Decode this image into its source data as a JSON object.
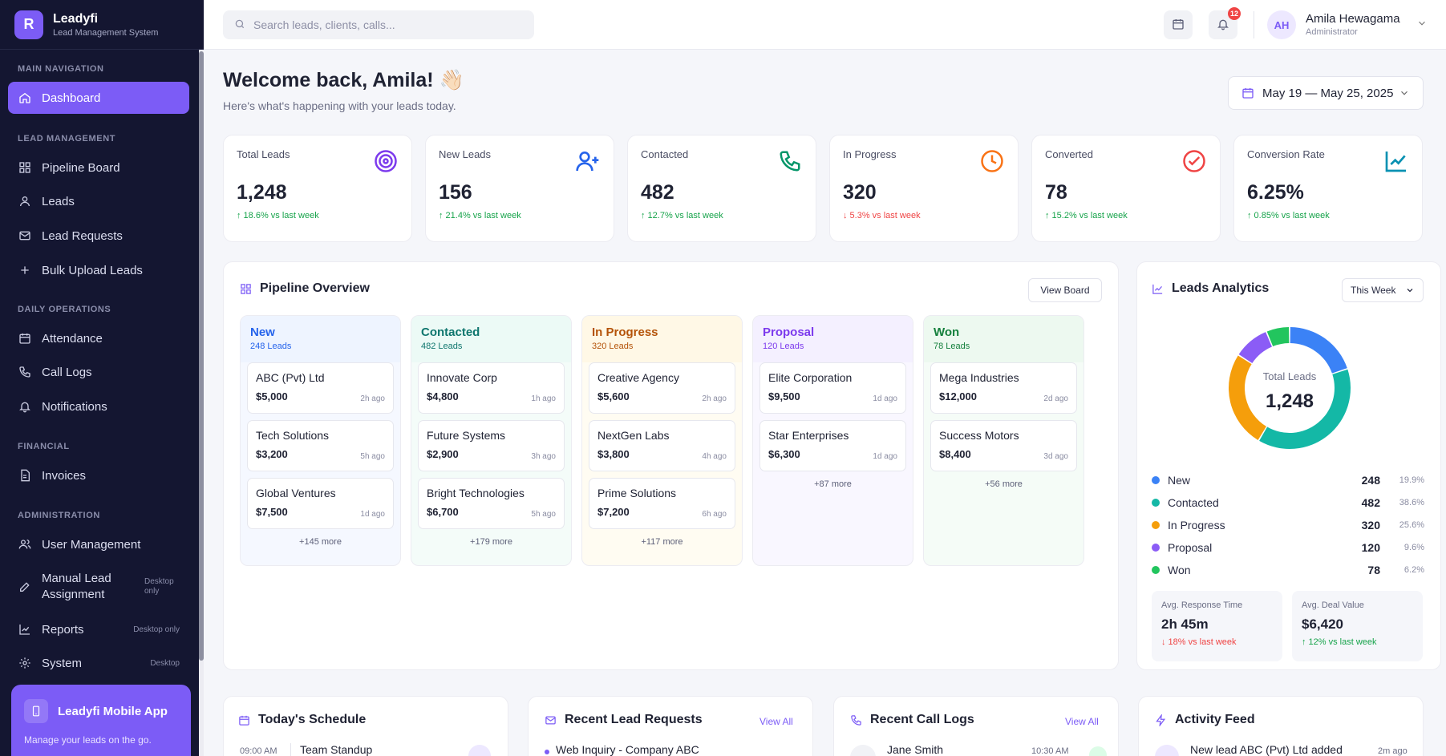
{
  "brand": {
    "logo_letter": "R",
    "name": "Leadyfi",
    "subtitle": "Lead Management System"
  },
  "sidebar": {
    "sections": [
      {
        "title": "Main Navigation"
      },
      {
        "title": "Lead Management"
      },
      {
        "title": "Daily Operations"
      },
      {
        "title": "Financial"
      },
      {
        "title": "Administration"
      }
    ],
    "items": [
      {
        "label": "Dashboard",
        "icon": "home-icon",
        "active": true
      },
      {
        "label": "Pipeline Board",
        "icon": "grid-icon"
      },
      {
        "label": "Leads",
        "icon": "user-icon"
      },
      {
        "label": "Lead Requests",
        "icon": "mail-icon"
      },
      {
        "label": "Bulk Upload Leads",
        "icon": "plus-icon"
      },
      {
        "label": "Attendance",
        "icon": "calendar-icon"
      },
      {
        "label": "Call Logs",
        "icon": "phone-icon"
      },
      {
        "label": "Notifications",
        "icon": "bell-icon"
      },
      {
        "label": "Invoices",
        "icon": "file-icon"
      },
      {
        "label": "User Management",
        "icon": "users-icon"
      },
      {
        "label": "Manual Lead Assignment",
        "icon": "edit-icon",
        "tag": "Desktop only"
      },
      {
        "label": "Reports",
        "icon": "chart-icon",
        "tag": "Desktop only"
      },
      {
        "label": "System",
        "icon": "settings-icon",
        "tag": "Desktop"
      }
    ],
    "mobile_card": {
      "title": "Leadyfi Mobile App",
      "subtitle": "Manage your leads on the go."
    }
  },
  "topbar": {
    "search_placeholder": "Search leads, clients, calls...",
    "notification_count": "12",
    "user": {
      "initials": "AH",
      "name": "Amila Hewagama",
      "role": "Administrator"
    }
  },
  "header": {
    "welcome": "Welcome back, Amila! 👋🏻",
    "subtitle": "Here's what's happening with your leads today.",
    "date_range": "May 19 — May 25, 2025"
  },
  "kpis": [
    {
      "label": "Total Leads",
      "value": "1,248",
      "delta": "↑ 18.6% vs last week",
      "trend": "up",
      "icon": "target-icon",
      "color": "#7c3aed"
    },
    {
      "label": "New Leads",
      "value": "156",
      "delta": "↑ 21.4% vs last week",
      "trend": "up",
      "icon": "user-plus-icon",
      "color": "#2563eb"
    },
    {
      "label": "Contacted",
      "value": "482",
      "delta": "↑ 12.7% vs last week",
      "trend": "up",
      "icon": "phone-icon",
      "color": "#059669"
    },
    {
      "label": "In Progress",
      "value": "320",
      "delta": "↓ 5.3% vs last week",
      "trend": "down",
      "icon": "clock-icon",
      "color": "#f97316"
    },
    {
      "label": "Converted",
      "value": "78",
      "delta": "↑ 15.2% vs last week",
      "trend": "up",
      "icon": "check-circle-icon",
      "color": "#ef4444"
    },
    {
      "label": "Conversion Rate",
      "value": "6.25%",
      "delta": "↑ 0.85% vs last week",
      "trend": "up",
      "icon": "trend-icon",
      "color": "#0891b2"
    }
  ],
  "pipeline": {
    "title": "Pipeline Overview",
    "view_board": "View Board",
    "columns": [
      {
        "title": "New",
        "count": "248 Leads",
        "color": "#2563eb",
        "bg": "#eef4ff",
        "body": "#f5f8ff",
        "deals": [
          {
            "name": "ABC (Pvt) Ltd",
            "value": "$5,000",
            "time": "2h ago"
          },
          {
            "name": "Tech Solutions",
            "value": "$3,200",
            "time": "5h ago"
          },
          {
            "name": "Global Ventures",
            "value": "$7,500",
            "time": "1d ago"
          }
        ],
        "more": "+145 more"
      },
      {
        "title": "Contacted",
        "count": "482 Leads",
        "color": "#0f766e",
        "bg": "#ecfaf6",
        "body": "#f4fcf9",
        "deals": [
          {
            "name": "Innovate Corp",
            "value": "$4,800",
            "time": "1h ago"
          },
          {
            "name": "Future Systems",
            "value": "$2,900",
            "time": "3h ago"
          },
          {
            "name": "Bright Technologies",
            "value": "$6,700",
            "time": "5h ago"
          }
        ],
        "more": "+179 more"
      },
      {
        "title": "In Progress",
        "count": "320 Leads",
        "color": "#b45309",
        "bg": "#fff8e6",
        "body": "#fffcf2",
        "deals": [
          {
            "name": "Creative Agency",
            "value": "$5,600",
            "time": "2h ago"
          },
          {
            "name": "NextGen Labs",
            "value": "$3,800",
            "time": "4h ago"
          },
          {
            "name": "Prime Solutions",
            "value": "$7,200",
            "time": "6h ago"
          }
        ],
        "more": "+117 more"
      },
      {
        "title": "Proposal",
        "count": "120 Leads",
        "color": "#7c3aed",
        "bg": "#f4f0ff",
        "body": "#f9f7ff",
        "deals": [
          {
            "name": "Elite Corporation",
            "value": "$9,500",
            "time": "1d ago"
          },
          {
            "name": "Star Enterprises",
            "value": "$6,300",
            "time": "1d ago"
          }
        ],
        "more": "+87 more"
      },
      {
        "title": "Won",
        "count": "78 Leads",
        "color": "#15803d",
        "bg": "#edf9f0",
        "body": "#f5fcf7",
        "deals": [
          {
            "name": "Mega Industries",
            "value": "$12,000",
            "time": "2d ago"
          },
          {
            "name": "Success Motors",
            "value": "$8,400",
            "time": "3d ago"
          }
        ],
        "more": "+56 more"
      }
    ]
  },
  "analytics": {
    "title": "Leads Analytics",
    "period": "This Week",
    "center_label": "Total Leads",
    "center_value": "1,248",
    "chart_data": {
      "type": "pie",
      "categories": [
        "New",
        "Contacted",
        "In Progress",
        "Proposal",
        "Won"
      ],
      "values": [
        248,
        482,
        320,
        120,
        78
      ],
      "percents": [
        "19.9%",
        "38.6%",
        "25.6%",
        "9.6%",
        "6.2%"
      ],
      "colors": [
        "#3b82f6",
        "#14b8a6",
        "#f59e0b",
        "#8b5cf6",
        "#22c55e"
      ]
    },
    "avg_response": {
      "label": "Avg. Response Time",
      "value": "2h 45m",
      "delta": "↓ 18% vs last week"
    },
    "avg_deal": {
      "label": "Avg. Deal Value",
      "value": "$6,420",
      "delta": "↑ 12% vs last week"
    }
  },
  "bottom": {
    "schedule": {
      "title": "Today's Schedule",
      "first_time": "09:00 AM",
      "first_item": "Team Standup"
    },
    "lead_requests": {
      "title": "Recent Lead Requests",
      "view_all": "View All",
      "first_item": "Web Inquiry - Company ABC"
    },
    "call_logs": {
      "title": "Recent Call Logs",
      "view_all": "View All",
      "first_name": "Jane Smith",
      "first_time": "10:30 AM"
    },
    "activity": {
      "title": "Activity Feed",
      "first_item": "New lead ABC (Pvt) Ltd added",
      "first_time": "2m ago"
    }
  }
}
